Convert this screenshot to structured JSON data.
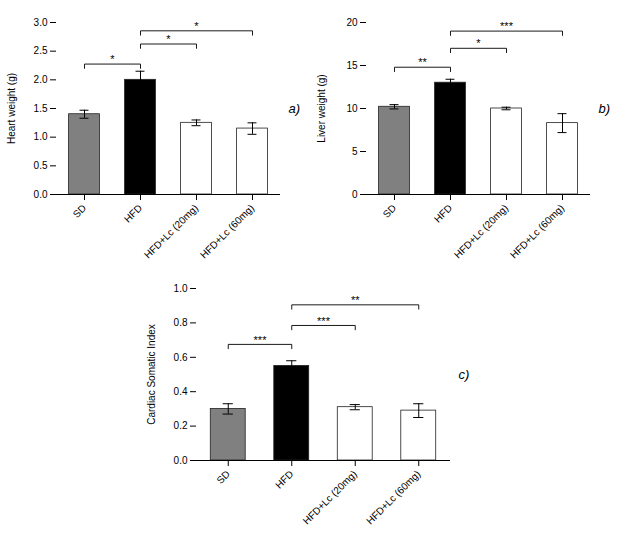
{
  "chart_data": [
    {
      "type": "bar",
      "title": "a)",
      "categories": [
        "SD",
        "HFD",
        "HFD+Lc (20mg)",
        "HFD+Lc (60mg)"
      ],
      "values": [
        1.4,
        2.0,
        1.25,
        1.15
      ],
      "errors": [
        0.07,
        0.15,
        0.05,
        0.1
      ],
      "colors": [
        "#808080",
        "#000000",
        "#ffffff",
        "#ffffff"
      ],
      "ylabel": "Heart weight (g)",
      "ylim": [
        0,
        3.0
      ],
      "yticks": [
        {
          "value": 0,
          "label": "0.0"
        },
        0.5,
        {
          "value": 1,
          "label": "1.0"
        },
        1.5,
        {
          "value": 2,
          "label": "2.0"
        },
        2.5,
        {
          "value": 3,
          "label": "3.0"
        }
      ],
      "annotations": [
        {
          "from": "SD",
          "to": "HFD",
          "y": 2.2,
          "label": "*"
        },
        {
          "from": "HFD",
          "to": "HFD+Lc (20mg)",
          "y": 2.55,
          "label": "*"
        },
        {
          "from": "HFD",
          "to": "HFD+Lc (60mg)",
          "y": 2.78,
          "label": "*"
        }
      ]
    },
    {
      "type": "bar",
      "title": "b)",
      "categories": [
        "SD",
        "HFD",
        "HFD+Lc (20mg)",
        "HFD+Lc (60mg)"
      ],
      "values": [
        10.2,
        13.0,
        10.0,
        8.3
      ],
      "errors": [
        0.25,
        0.4,
        0.15,
        1.1
      ],
      "colors": [
        "#808080",
        "#000000",
        "#ffffff",
        "#ffffff"
      ],
      "ylabel": "Liver weight (g)",
      "ylim": [
        0,
        20
      ],
      "yticks": [
        0,
        5,
        10,
        15,
        20
      ],
      "annotations": [
        {
          "from": "SD",
          "to": "HFD",
          "y": 14.3,
          "label": "**"
        },
        {
          "from": "HFD",
          "to": "HFD+Lc (20mg)",
          "y": 16.5,
          "label": "*"
        },
        {
          "from": "HFD",
          "to": "HFD+Lc (60mg)",
          "y": 18.5,
          "label": "***"
        }
      ]
    },
    {
      "type": "bar",
      "title": "c)",
      "categories": [
        "SD",
        "HFD",
        "HFD+Lc (20mg)",
        "HFD+Lc (60mg)"
      ],
      "values": [
        0.3,
        0.55,
        0.31,
        0.29
      ],
      "errors": [
        0.03,
        0.03,
        0.015,
        0.04
      ],
      "colors": [
        "#808080",
        "#000000",
        "#ffffff",
        "#ffffff"
      ],
      "ylabel": "Cardiac Somatic Index",
      "ylim": [
        0,
        1.0
      ],
      "yticks": [
        {
          "value": 0,
          "label": "0.0"
        },
        0.2,
        0.4,
        0.6,
        0.8,
        {
          "value": 1,
          "label": "1.0"
        }
      ],
      "annotations": [
        {
          "from": "SD",
          "to": "HFD",
          "y": 0.65,
          "label": "***"
        },
        {
          "from": "HFD",
          "to": "HFD+Lc (20mg)",
          "y": 0.76,
          "label": "***"
        },
        {
          "from": "HFD",
          "to": "HFD+Lc (60mg)",
          "y": 0.88,
          "label": "**"
        }
      ]
    }
  ]
}
